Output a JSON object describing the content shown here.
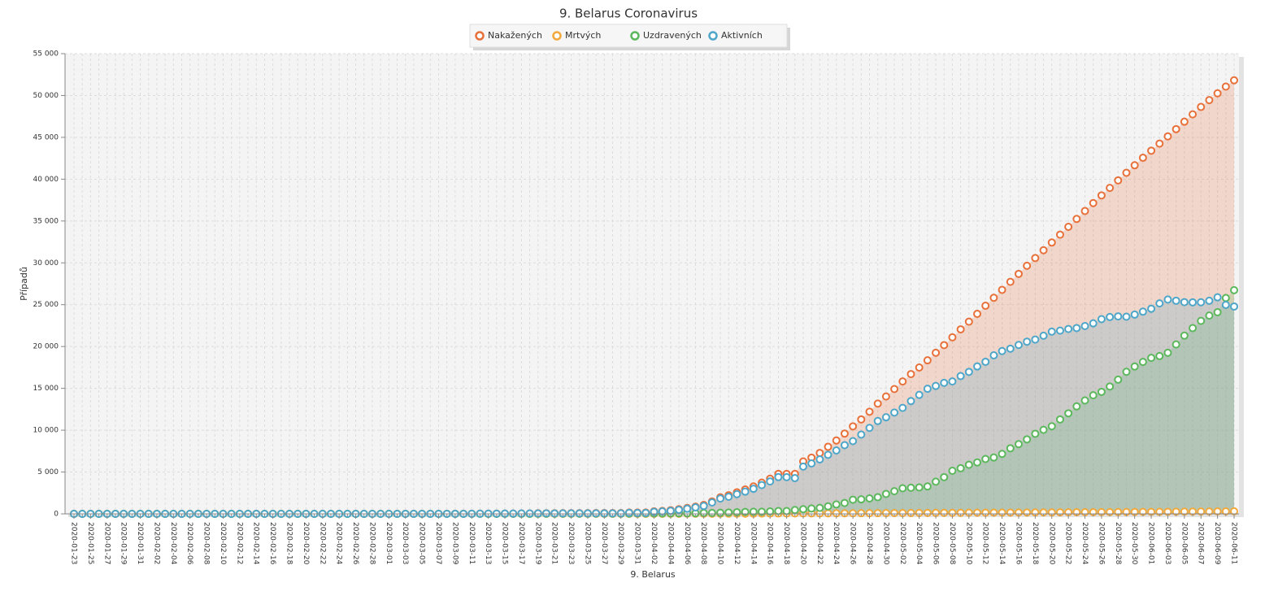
{
  "chart_data": {
    "type": "area",
    "title": "9. Belarus Coronavirus",
    "x_label": "9. Belarus",
    "y_label": "Případů",
    "grid": true,
    "legend": "top",
    "ylim": [
      0,
      55000
    ],
    "yticks": [
      0,
      {
        "value": 5000,
        "label": "5 000"
      },
      {
        "value": 10000,
        "label": "10 000"
      },
      {
        "value": 15000,
        "label": "15 000"
      },
      {
        "value": 20000,
        "label": "20 000"
      },
      {
        "value": 25000,
        "label": "25 000"
      },
      {
        "value": 30000,
        "label": "30 000"
      },
      {
        "value": 35000,
        "label": "35 000"
      },
      {
        "value": 40000,
        "label": "40 000"
      },
      {
        "value": 45000,
        "label": "45 000"
      },
      {
        "value": 50000,
        "label": "50 000"
      },
      {
        "value": 55000,
        "label": "55 000"
      }
    ],
    "categories": [
      "2020-01-23",
      null,
      "2020-01-25",
      null,
      "2020-01-27",
      null,
      "2020-01-29",
      null,
      "2020-01-31",
      null,
      "2020-02-02",
      null,
      "2020-02-04",
      null,
      "2020-02-06",
      null,
      "2020-02-08",
      null,
      "2020-02-10",
      null,
      "2020-02-12",
      null,
      "2020-02-14",
      null,
      "2020-02-16",
      null,
      "2020-02-18",
      null,
      "2020-02-20",
      null,
      "2020-02-22",
      null,
      "2020-02-24",
      null,
      "2020-02-26",
      null,
      "2020-02-28",
      null,
      "2020-03-01",
      null,
      "2020-03-03",
      null,
      "2020-03-05",
      null,
      "2020-03-07",
      null,
      "2020-03-09",
      null,
      "2020-03-11",
      null,
      "2020-03-13",
      null,
      "2020-03-15",
      null,
      "2020-03-17",
      null,
      "2020-03-19",
      null,
      "2020-03-21",
      null,
      "2020-03-23",
      null,
      "2020-03-25",
      null,
      "2020-03-27",
      null,
      "2020-03-29",
      null,
      "2020-03-31",
      null,
      "2020-04-02",
      null,
      "2020-04-04",
      null,
      "2020-04-06",
      null,
      "2020-04-08",
      null,
      "2020-04-10",
      null,
      "2020-04-12",
      null,
      "2020-04-14",
      null,
      "2020-04-16",
      null,
      "2020-04-18",
      null,
      "2020-04-20",
      null,
      "2020-04-22",
      null,
      "2020-04-24",
      null,
      "2020-04-26",
      null,
      "2020-04-28",
      null,
      "2020-04-30",
      null,
      "2020-05-02",
      null,
      "2020-05-04",
      null,
      "2020-05-06",
      null,
      "2020-05-08",
      null,
      "2020-05-10",
      null,
      "2020-05-12",
      null,
      "2020-05-14",
      null,
      "2020-05-16",
      null,
      "2020-05-18",
      null,
      "2020-05-20",
      null,
      "2020-05-22",
      null,
      "2020-05-24",
      null,
      "2020-05-26",
      null,
      "2020-05-28",
      null,
      "2020-05-30",
      null,
      "2020-06-01",
      null,
      "2020-06-03",
      null,
      "2020-06-05",
      null,
      "2020-06-07",
      null,
      "2020-06-09",
      null,
      "2020-06-11"
    ],
    "series": [
      {
        "name": "Nakažených",
        "color": "#e8703a",
        "values": [
          0,
          0,
          0,
          0,
          0,
          0,
          0,
          0,
          0,
          0,
          0,
          0,
          0,
          0,
          0,
          0,
          0,
          0,
          0,
          0,
          0,
          0,
          0,
          0,
          0,
          0,
          0,
          0,
          0,
          0,
          0,
          0,
          0,
          0,
          0,
          0,
          1,
          1,
          1,
          1,
          6,
          6,
          6,
          6,
          6,
          6,
          9,
          9,
          12,
          27,
          27,
          27,
          36,
          36,
          51,
          51,
          69,
          76,
          76,
          81,
          81,
          86,
          86,
          94,
          94,
          94,
          94,
          152,
          152,
          163,
          304,
          351,
          440,
          562,
          700,
          861,
          1066,
          1486,
          1981,
          2226,
          2578,
          2919,
          3281,
          3728,
          4204,
          4779,
          4779,
          4779,
          6264,
          6723,
          7281,
          8022,
          8773,
          9590,
          10463,
          11289,
          12208,
          13181,
          14027,
          14917,
          15828,
          16705,
          17489,
          18350,
          19255,
          20168,
          21101,
          22052,
          22973,
          23906,
          24873,
          25825,
          26772,
          27730,
          28681,
          29650,
          30572,
          31508,
          32426,
          33371,
          34303,
          35244,
          36198,
          37144,
          38059,
          38956,
          39858,
          40764,
          41658,
          42556,
          43403,
          44255,
          45116,
          45981,
          46868,
          47751,
          48630,
          49453,
          50265,
          51066,
          51816
        ]
      },
      {
        "name": "Mrtvých",
        "color": "#f2a93b",
        "values": [
          0,
          0,
          0,
          0,
          0,
          0,
          0,
          0,
          0,
          0,
          0,
          0,
          0,
          0,
          0,
          0,
          0,
          0,
          0,
          0,
          0,
          0,
          0,
          0,
          0,
          0,
          0,
          0,
          0,
          0,
          0,
          0,
          0,
          0,
          0,
          0,
          0,
          0,
          0,
          0,
          0,
          0,
          0,
          0,
          0,
          0,
          0,
          0,
          0,
          0,
          0,
          0,
          0,
          0,
          0,
          0,
          0,
          0,
          0,
          0,
          0,
          0,
          0,
          0,
          0,
          0,
          0,
          0,
          0,
          2,
          4,
          4,
          5,
          8,
          13,
          13,
          13,
          16,
          19,
          23,
          26,
          29,
          33,
          36,
          40,
          45,
          47,
          51,
          55,
          58,
          60,
          63,
          67,
          72,
          75,
          79,
          84,
          89,
          93,
          98,
          99,
          103,
          107,
          112,
          116,
          121,
          124,
          126,
          131,
          135,
          137,
          142,
          146,
          151,
          156,
          160,
          165,
          169,
          175,
          179,
          185,
          190,
          194,
          199,
          204,
          208,
          214,
          219,
          224,
          229,
          235,
          240,
          248,
          255,
          262,
          269,
          276,
          281,
          286,
          293,
          298
        ]
      },
      {
        "name": "Uzdravených",
        "color": "#5cb85c",
        "values": [
          0,
          0,
          0,
          0,
          0,
          0,
          0,
          0,
          0,
          0,
          0,
          0,
          0,
          0,
          0,
          0,
          0,
          0,
          0,
          0,
          0,
          0,
          0,
          0,
          0,
          0,
          0,
          0,
          0,
          0,
          0,
          0,
          0,
          0,
          0,
          0,
          0,
          0,
          0,
          0,
          0,
          0,
          0,
          0,
          0,
          0,
          3,
          3,
          3,
          3,
          3,
          3,
          3,
          3,
          5,
          5,
          15,
          15,
          22,
          22,
          22,
          29,
          29,
          32,
          32,
          32,
          32,
          32,
          48,
          53,
          53,
          53,
          67,
          67,
          72,
          72,
          110,
          110,
          128,
          162,
          197,
          234,
          251,
          251,
          286,
          342,
          342,
          458,
          559,
          642,
          716,
          900,
          1125,
          1303,
          1692,
          1734,
          1846,
          1993,
          2386,
          2711,
          3062,
          3124,
          3162,
          3283,
          3850,
          4388,
          5150,
          5458,
          5870,
          6150,
          6561,
          6738,
          7167,
          7838,
          8336,
          8909,
          9571,
          10045,
          10471,
          11289,
          12019,
          12847,
          13555,
          14174,
          14582,
          15223,
          16040,
          16983,
          17618,
          18160,
          18650,
          18860,
          19250,
          20250,
          21300,
          22200,
          23066,
          23700,
          24100,
          25800,
          26735
        ]
      },
      {
        "name": "Aktivních",
        "color": "#4ea6c9",
        "values": [
          0,
          0,
          0,
          0,
          0,
          0,
          0,
          0,
          0,
          0,
          0,
          0,
          0,
          0,
          0,
          0,
          0,
          0,
          0,
          0,
          0,
          0,
          0,
          0,
          0,
          0,
          0,
          0,
          0,
          0,
          0,
          0,
          0,
          0,
          0,
          0,
          1,
          1,
          1,
          1,
          6,
          6,
          6,
          6,
          6,
          6,
          6,
          6,
          9,
          24,
          24,
          24,
          33,
          33,
          46,
          46,
          54,
          61,
          54,
          59,
          59,
          57,
          57,
          62,
          62,
          62,
          62,
          120,
          104,
          108,
          247,
          294,
          368,
          487,
          615,
          776,
          943,
          1360,
          1834,
          2041,
          2355,
          2656,
          2997,
          3441,
          3878,
          4392,
          4390,
          4270,
          5650,
          6023,
          6505,
          7059,
          7581,
          8215,
          8696,
          9476,
          10278,
          11099,
          11548,
          12108,
          12667,
          13478,
          14220,
          14955,
          15289,
          15659,
          15827,
          16468,
          16972,
          17621,
          18175,
          18945,
          19459,
          19741,
          20189,
          20581,
          20836,
          21294,
          21780,
          21903,
          22099,
          22207,
          22449,
          22771,
          23273,
          23525,
          23604,
          23562,
          23816,
          24167,
          24518,
          25155,
          25618,
          25476,
          25306,
          25282,
          25288,
          25472,
          25879,
          24973,
          24783
        ]
      }
    ]
  }
}
